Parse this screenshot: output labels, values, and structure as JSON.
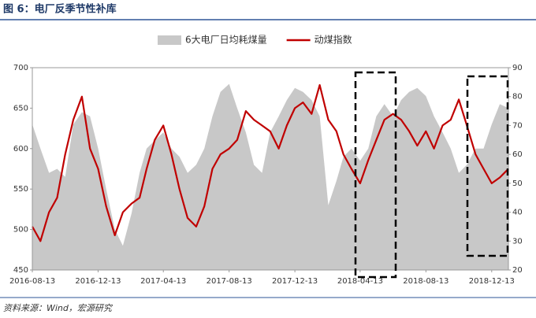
{
  "title": "图 6：电厂反季节性补库",
  "source": "资料来源：Wind，宏源研究",
  "chart_data": {
    "type": "area-line",
    "x": [
      "2016-08-13",
      "2016-08-28",
      "2016-09-13",
      "2016-09-28",
      "2016-10-13",
      "2016-10-28",
      "2016-11-13",
      "2016-11-28",
      "2016-12-13",
      "2016-12-28",
      "2017-01-13",
      "2017-01-28",
      "2017-02-13",
      "2017-02-28",
      "2017-03-13",
      "2017-03-28",
      "2017-04-13",
      "2017-04-28",
      "2017-05-13",
      "2017-05-28",
      "2017-06-13",
      "2017-06-28",
      "2017-07-13",
      "2017-07-28",
      "2017-08-13",
      "2017-08-28",
      "2017-09-13",
      "2017-09-28",
      "2017-10-13",
      "2017-10-28",
      "2017-11-13",
      "2017-11-28",
      "2017-12-13",
      "2017-12-28",
      "2018-01-13",
      "2018-01-28",
      "2018-02-13",
      "2018-02-28",
      "2018-03-13",
      "2018-03-28",
      "2018-04-13",
      "2018-04-28",
      "2018-05-13",
      "2018-05-28",
      "2018-06-13",
      "2018-06-28",
      "2018-07-13",
      "2018-07-28",
      "2018-08-13",
      "2018-08-28",
      "2018-09-13",
      "2018-09-28",
      "2018-10-13",
      "2018-10-28",
      "2018-11-13",
      "2018-11-28",
      "2018-12-13",
      "2018-12-28",
      "2019-01-13"
    ],
    "series": [
      {
        "name": "6大电厂日均耗煤量",
        "color": "#c8c8c8",
        "kind": "area",
        "values": [
          630,
          600,
          570,
          575,
          565,
          630,
          645,
          640,
          600,
          550,
          500,
          480,
          520,
          570,
          600,
          610,
          620,
          600,
          590,
          570,
          580,
          600,
          640,
          670,
          680,
          650,
          620,
          580,
          570,
          620,
          640,
          660,
          675,
          670,
          660,
          640,
          530,
          560,
          590,
          600,
          585,
          600,
          640,
          655,
          640,
          660,
          670,
          675,
          665,
          640,
          620,
          600,
          570,
          580,
          600,
          600,
          630,
          655,
          650
        ]
      },
      {
        "name": "动煤指数",
        "color": "#c00000",
        "kind": "line",
        "axis": "y2",
        "values": [
          35,
          30,
          40,
          45,
          60,
          72,
          80,
          62,
          55,
          42,
          32,
          40,
          43,
          45,
          55,
          65,
          70,
          60,
          48,
          38,
          35,
          42,
          55,
          60,
          62,
          65,
          75,
          72,
          70,
          68,
          62,
          70,
          76,
          78,
          74,
          84,
          72,
          68,
          60,
          55,
          50,
          58,
          65,
          72,
          74,
          72,
          68,
          63,
          68,
          62,
          70,
          72,
          79,
          70,
          60,
          55,
          50,
          52,
          55
        ]
      }
    ],
    "xlim": [
      "2016-08-13",
      "2019-01-13"
    ],
    "xticks": [
      "2016-08-13",
      "2016-12-13",
      "2017-04-13",
      "2017-08-13",
      "2017-12-13",
      "2018-04-13",
      "2018-08-13",
      "2018-12-13"
    ],
    "ylim": [
      450,
      700
    ],
    "yticks": [
      450,
      500,
      550,
      600,
      650,
      700
    ],
    "y2lim": [
      20,
      90
    ],
    "y2ticks": [
      20,
      30,
      40,
      50,
      60,
      70,
      80,
      90
    ]
  }
}
